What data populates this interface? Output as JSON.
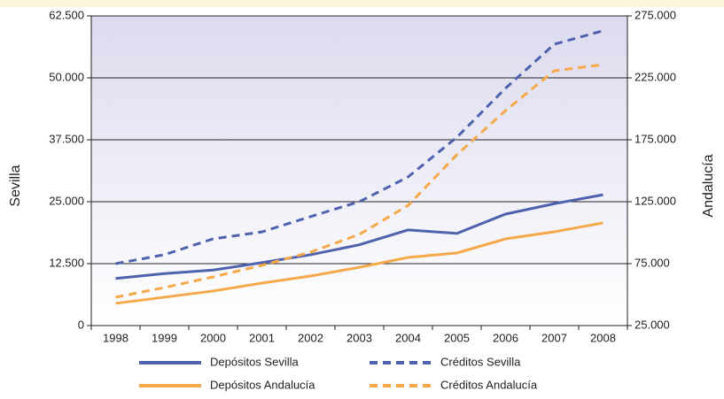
{
  "chart_data": {
    "type": "line",
    "ylabel": "Sevilla",
    "y2label": "Andalucía",
    "categories": [
      "1998",
      "1999",
      "2000",
      "2001",
      "2002",
      "2003",
      "2004",
      "2005",
      "2006",
      "2007",
      "2008"
    ],
    "series": [
      {
        "name": "Depósitos Sevilla",
        "color": "#4f62ad",
        "dash": false,
        "values": [
          9500,
          10500,
          11200,
          12700,
          14300,
          16300,
          19300,
          18600,
          22500,
          24600,
          26400
        ]
      },
      {
        "name": "Créditos Sevilla",
        "color": "#4f62ad",
        "dash": true,
        "values": [
          12500,
          14300,
          17500,
          18900,
          22000,
          25000,
          30000,
          38000,
          47900,
          56800,
          59500
        ]
      },
      {
        "name": "Depósitos Andalucía",
        "color": "#f5a94a",
        "dash": false,
        "axis": "y2",
        "values": [
          42900,
          47900,
          52900,
          59300,
          65000,
          72000,
          80000,
          83600,
          95000,
          100700,
          107900
        ]
      },
      {
        "name": "Créditos Andalucía",
        "color": "#f5a94a",
        "dash": true,
        "axis": "y2",
        "values": [
          47900,
          55700,
          64300,
          73600,
          84300,
          98600,
          122000,
          162900,
          198600,
          230700,
          235700
        ]
      }
    ],
    "ylim": [
      0,
      62500
    ],
    "yticks": [
      0,
      {
        "value": 12500,
        "label": "12.500"
      },
      {
        "value": 25000,
        "label": "25.000"
      },
      {
        "value": 37500,
        "label": "37.500"
      },
      {
        "value": 50000,
        "label": "50.000"
      },
      {
        "value": 62500,
        "label": "62.500"
      }
    ],
    "y2lim": [
      25000,
      275000
    ],
    "y2ticks": [
      {
        "value": 25000,
        "label": "25.000"
      },
      {
        "value": 75000,
        "label": "75.000"
      },
      {
        "value": 125000,
        "label": "125.000"
      },
      {
        "value": 175000,
        "label": "175.000"
      },
      {
        "value": 225000,
        "label": "225.000"
      },
      {
        "value": 275000,
        "label": "275.000"
      }
    ],
    "grid": true
  }
}
